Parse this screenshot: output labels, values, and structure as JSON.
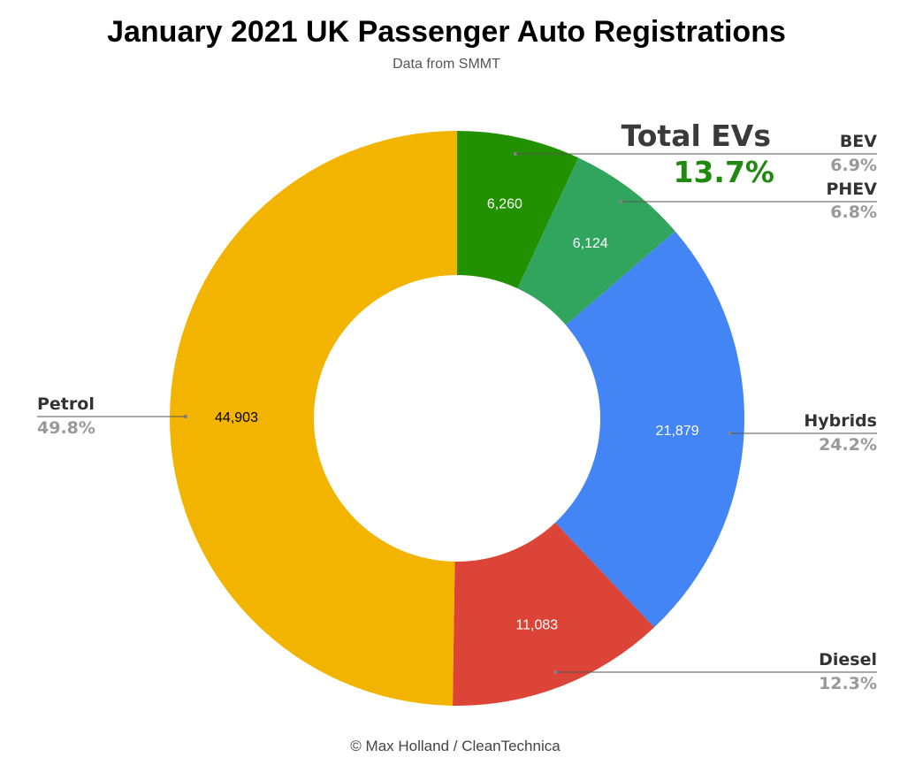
{
  "chart_data": {
    "type": "pie",
    "title": "January 2021 UK Passenger Auto Registrations",
    "subtitle": "Data from SMMT",
    "credit": "© Max Holland / CleanTechnica",
    "donut": true,
    "ev_callout": {
      "label": "Total EVs",
      "value": "13.7%",
      "color": "#1f8a0f"
    },
    "slices": [
      {
        "name": "BEV",
        "value": 6260,
        "value_label": "6,260",
        "percent_label": "6.9%",
        "color": "#229100",
        "text_color": "#ffffff"
      },
      {
        "name": "PHEV",
        "value": 6124,
        "value_label": "6,124",
        "percent_label": "6.8%",
        "color": "#31a55e",
        "text_color": "#ffffff"
      },
      {
        "name": "Hybrids",
        "value": 21879,
        "value_label": "21,879",
        "percent_label": "24.2%",
        "color": "#4385f4",
        "text_color": "#ffffff"
      },
      {
        "name": "Diesel",
        "value": 11083,
        "value_label": "11,083",
        "percent_label": "12.3%",
        "color": "#dc4437",
        "text_color": "#ffffff"
      },
      {
        "name": "Petrol",
        "value": 44903,
        "value_label": "44,903",
        "percent_label": "49.8%",
        "color": "#f3b400",
        "text_color": "#000000"
      }
    ]
  }
}
